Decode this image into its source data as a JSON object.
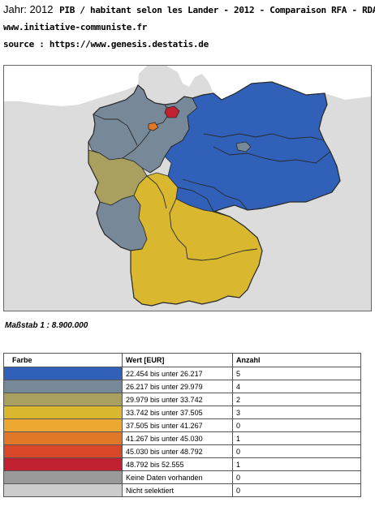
{
  "header": {
    "year_label": "Jahr: 2012",
    "title": "PIB / habitant selon les Lander - 2012 - Comparaison RFA - RDA",
    "site": "www.initiative-communiste.fr",
    "source": "source : https://www.genesis.destatis.de"
  },
  "scale_label": "Maßstab  1 : 8.900.000",
  "legend": {
    "headers": [
      "Farbe",
      "Wert [EUR]",
      "Anzahl"
    ],
    "rows": [
      {
        "color": "#3060b8",
        "range": "22.454 bis unter 26.217",
        "count": "5"
      },
      {
        "color": "#778898",
        "range": "26.217 bis unter 29.979",
        "count": "4"
      },
      {
        "color": "#a9a060",
        "range": "29.979 bis unter 33.742",
        "count": "2"
      },
      {
        "color": "#d9b830",
        "range": "33.742 bis unter 37.505",
        "count": "3"
      },
      {
        "color": "#eca830",
        "range": "37.505 bis unter 41.267",
        "count": "0"
      },
      {
        "color": "#e07828",
        "range": "41.267 bis unter 45.030",
        "count": "1"
      },
      {
        "color": "#d84828",
        "range": "45.030 bis unter 48.792",
        "count": "0"
      },
      {
        "color": "#c02030",
        "range": "48.792 bis 52.555",
        "count": "1"
      },
      {
        "color": "#9a9a9a",
        "range": "Keine Daten vorhanden",
        "count": "0"
      },
      {
        "color": "#cccccc",
        "range": "Nicht selektiert",
        "count": "0"
      }
    ]
  },
  "map": {
    "colors": {
      "east": "#3060b8",
      "north_west": "#778898",
      "olive": "#a9a060",
      "south": "#d9b830",
      "city_red": "#c02030",
      "city_orange": "#e07828",
      "neighbor": "#dcdcdc",
      "sea": "#ffffff",
      "border": "#2a2a2a"
    }
  }
}
